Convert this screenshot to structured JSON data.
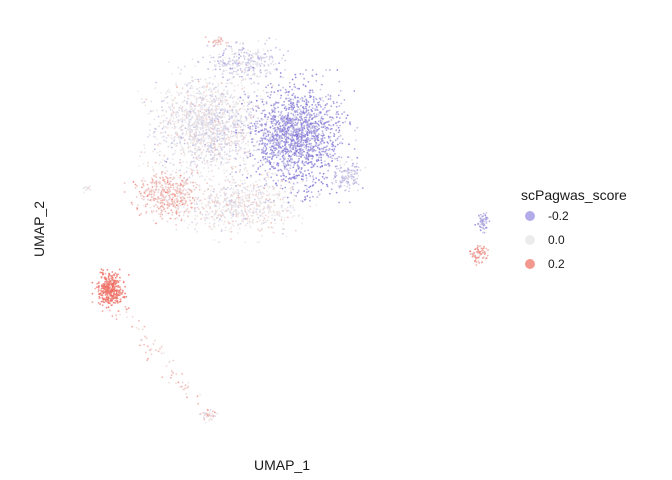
{
  "chart_data": {
    "type": "scatter",
    "title": "",
    "xlabel": "UMAP_1",
    "ylabel": "UMAP_2",
    "grid": false,
    "color_variable": "scPagwas_score",
    "color_scale": {
      "low": "#7b6fd6",
      "mid": "#ececec",
      "high": "#f0665a",
      "range": [
        -0.35,
        0.35
      ]
    },
    "legend": {
      "title": "scPagwas_score",
      "position": "right",
      "entries": [
        {
          "label": "-0.2",
          "value": -0.2,
          "color": "#b3acea"
        },
        {
          "label": "0.0",
          "value": 0.0,
          "color": "#ececec"
        },
        {
          "label": "0.2",
          "value": 0.2,
          "color": "#f2988f"
        }
      ]
    },
    "clusters": [
      {
        "name": "main-left",
        "center": [
          -2.2,
          6.8
        ],
        "spread": [
          2.3,
          2.4
        ],
        "n": 1500,
        "score": -0.02,
        "score_sd": 0.06
      },
      {
        "name": "main-right",
        "center": [
          2.2,
          6.2
        ],
        "spread": [
          2.0,
          2.5
        ],
        "n": 1600,
        "score": -0.24,
        "score_sd": 0.07
      },
      {
        "name": "main-top",
        "center": [
          -0.4,
          10.4
        ],
        "spread": [
          1.7,
          0.9
        ],
        "n": 300,
        "score": -0.08,
        "score_sd": 0.07
      },
      {
        "name": "main-lower",
        "center": [
          -0.6,
          2.3
        ],
        "spread": [
          2.6,
          1.4
        ],
        "n": 700,
        "score": 0.01,
        "score_sd": 0.06
      },
      {
        "name": "lower-left-pink",
        "center": [
          -4.2,
          2.9
        ],
        "spread": [
          1.4,
          1.2
        ],
        "n": 420,
        "score": 0.12,
        "score_sd": 0.06
      },
      {
        "name": "right-shoulder",
        "center": [
          4.7,
          4.0
        ],
        "spread": [
          0.6,
          0.7
        ],
        "n": 120,
        "score": -0.1,
        "score_sd": 0.06
      },
      {
        "name": "top-pink",
        "center": [
          -1.7,
          11.6
        ],
        "spread": [
          0.4,
          0.2
        ],
        "n": 25,
        "score": 0.14,
        "score_sd": 0.05
      },
      {
        "name": "bottom-left-red",
        "center": [
          -7.0,
          -2.5
        ],
        "spread": [
          0.6,
          0.8
        ],
        "n": 380,
        "score": 0.3,
        "score_sd": 0.05
      },
      {
        "name": "left-small",
        "center": [
          -8.2,
          3.2
        ],
        "spread": [
          0.25,
          0.2
        ],
        "n": 12,
        "score": 0.0,
        "score_sd": 0.05
      },
      {
        "name": "tail",
        "center": [
          -4.5,
          -6.5
        ],
        "spread": [
          1.0,
          1.6
        ],
        "n": 70,
        "score": 0.12,
        "score_sd": 0.07
      },
      {
        "name": "bottom-small",
        "center": [
          -2.1,
          -9.6
        ],
        "spread": [
          0.4,
          0.3
        ],
        "n": 45,
        "score": 0.02,
        "score_sd": 0.1
      },
      {
        "name": "right-island-upper",
        "center": [
          11.4,
          1.4
        ],
        "spread": [
          0.25,
          0.5
        ],
        "n": 60,
        "score": -0.2,
        "score_sd": 0.07
      },
      {
        "name": "right-island-lower",
        "center": [
          11.2,
          -0.5
        ],
        "spread": [
          0.4,
          0.45
        ],
        "n": 70,
        "score": 0.2,
        "score_sd": 0.06
      }
    ],
    "xlim": [
      -9.5,
      12.5
    ],
    "ylim": [
      -11,
      12.5
    ]
  }
}
